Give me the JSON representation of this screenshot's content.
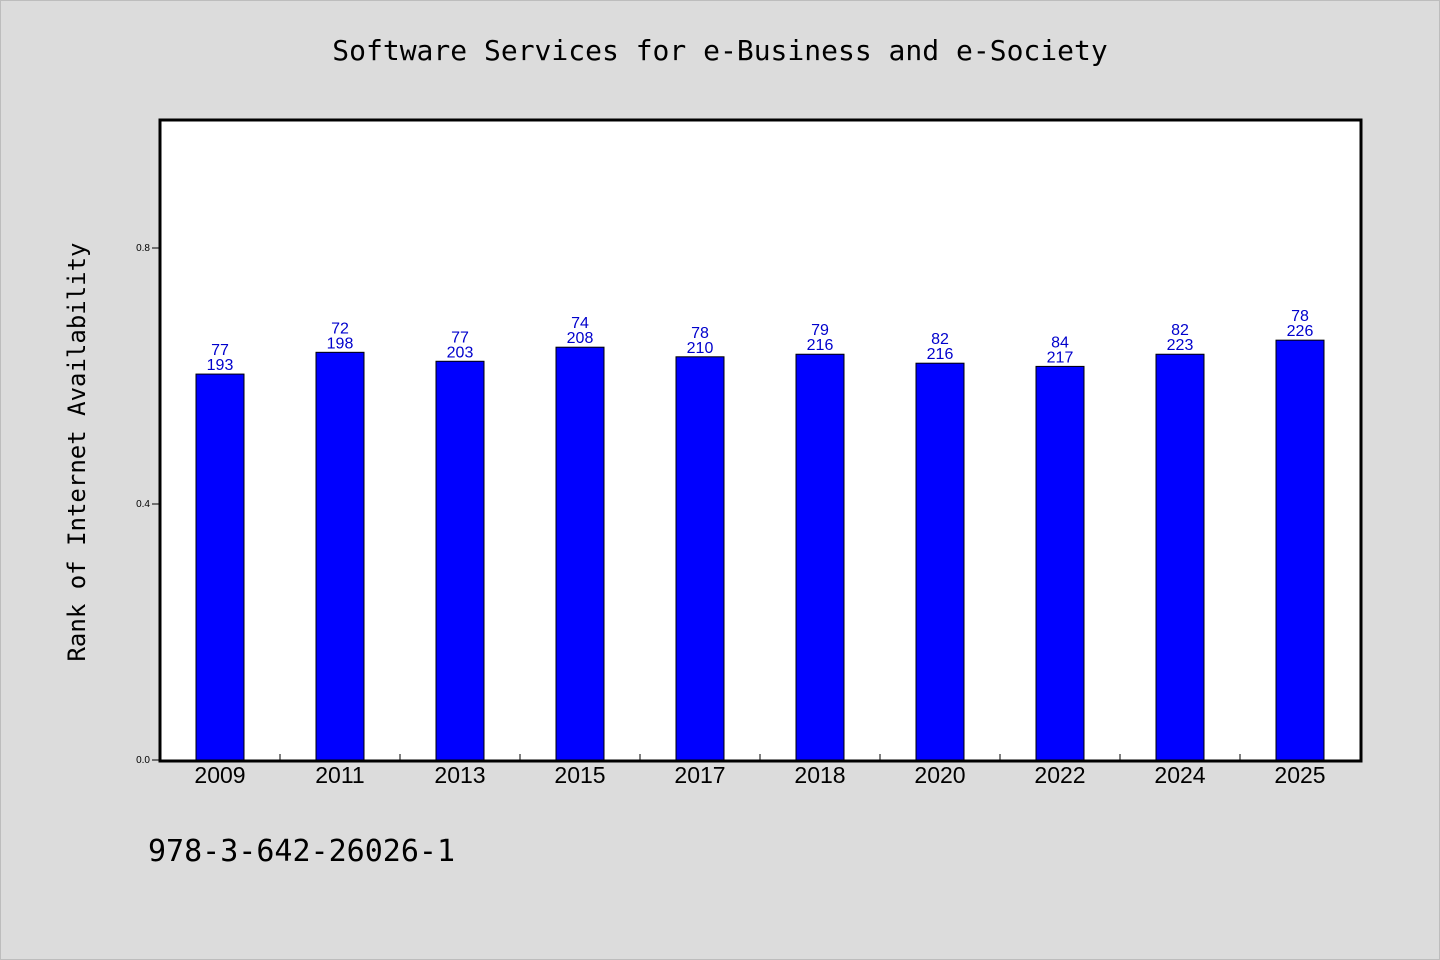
{
  "chart_data": {
    "type": "bar",
    "title": "Software Services for e-Business and e-Society",
    "xlabel": "",
    "ylabel": "Rank of Internet Availability",
    "ylim": [
      0,
      1.0
    ],
    "yticks": [
      0.0,
      0.4,
      0.8
    ],
    "ytick_labels": [
      "0.0",
      "0.4",
      "0.8"
    ],
    "categories": [
      "2009",
      "2011",
      "2013",
      "2015",
      "2017",
      "2018",
      "2020",
      "2022",
      "2024",
      "2025"
    ],
    "values": [
      0.603,
      0.637,
      0.623,
      0.645,
      0.63,
      0.634,
      0.62,
      0.615,
      0.634,
      0.656
    ],
    "label_top": [
      "77",
      "72",
      "77",
      "74",
      "78",
      "79",
      "82",
      "84",
      "82",
      "78"
    ],
    "label_bottom": [
      "193",
      "198",
      "203",
      "208",
      "210",
      "216",
      "216",
      "217",
      "223",
      "226"
    ],
    "bar_color": "#0000ff",
    "label_color": "#0000cc",
    "grid": false,
    "legend": "none"
  },
  "footer": {
    "code": "978-3-642-26026-1"
  },
  "colors": {
    "background": "#dcdcdc",
    "plot_background": "#ffffff"
  }
}
